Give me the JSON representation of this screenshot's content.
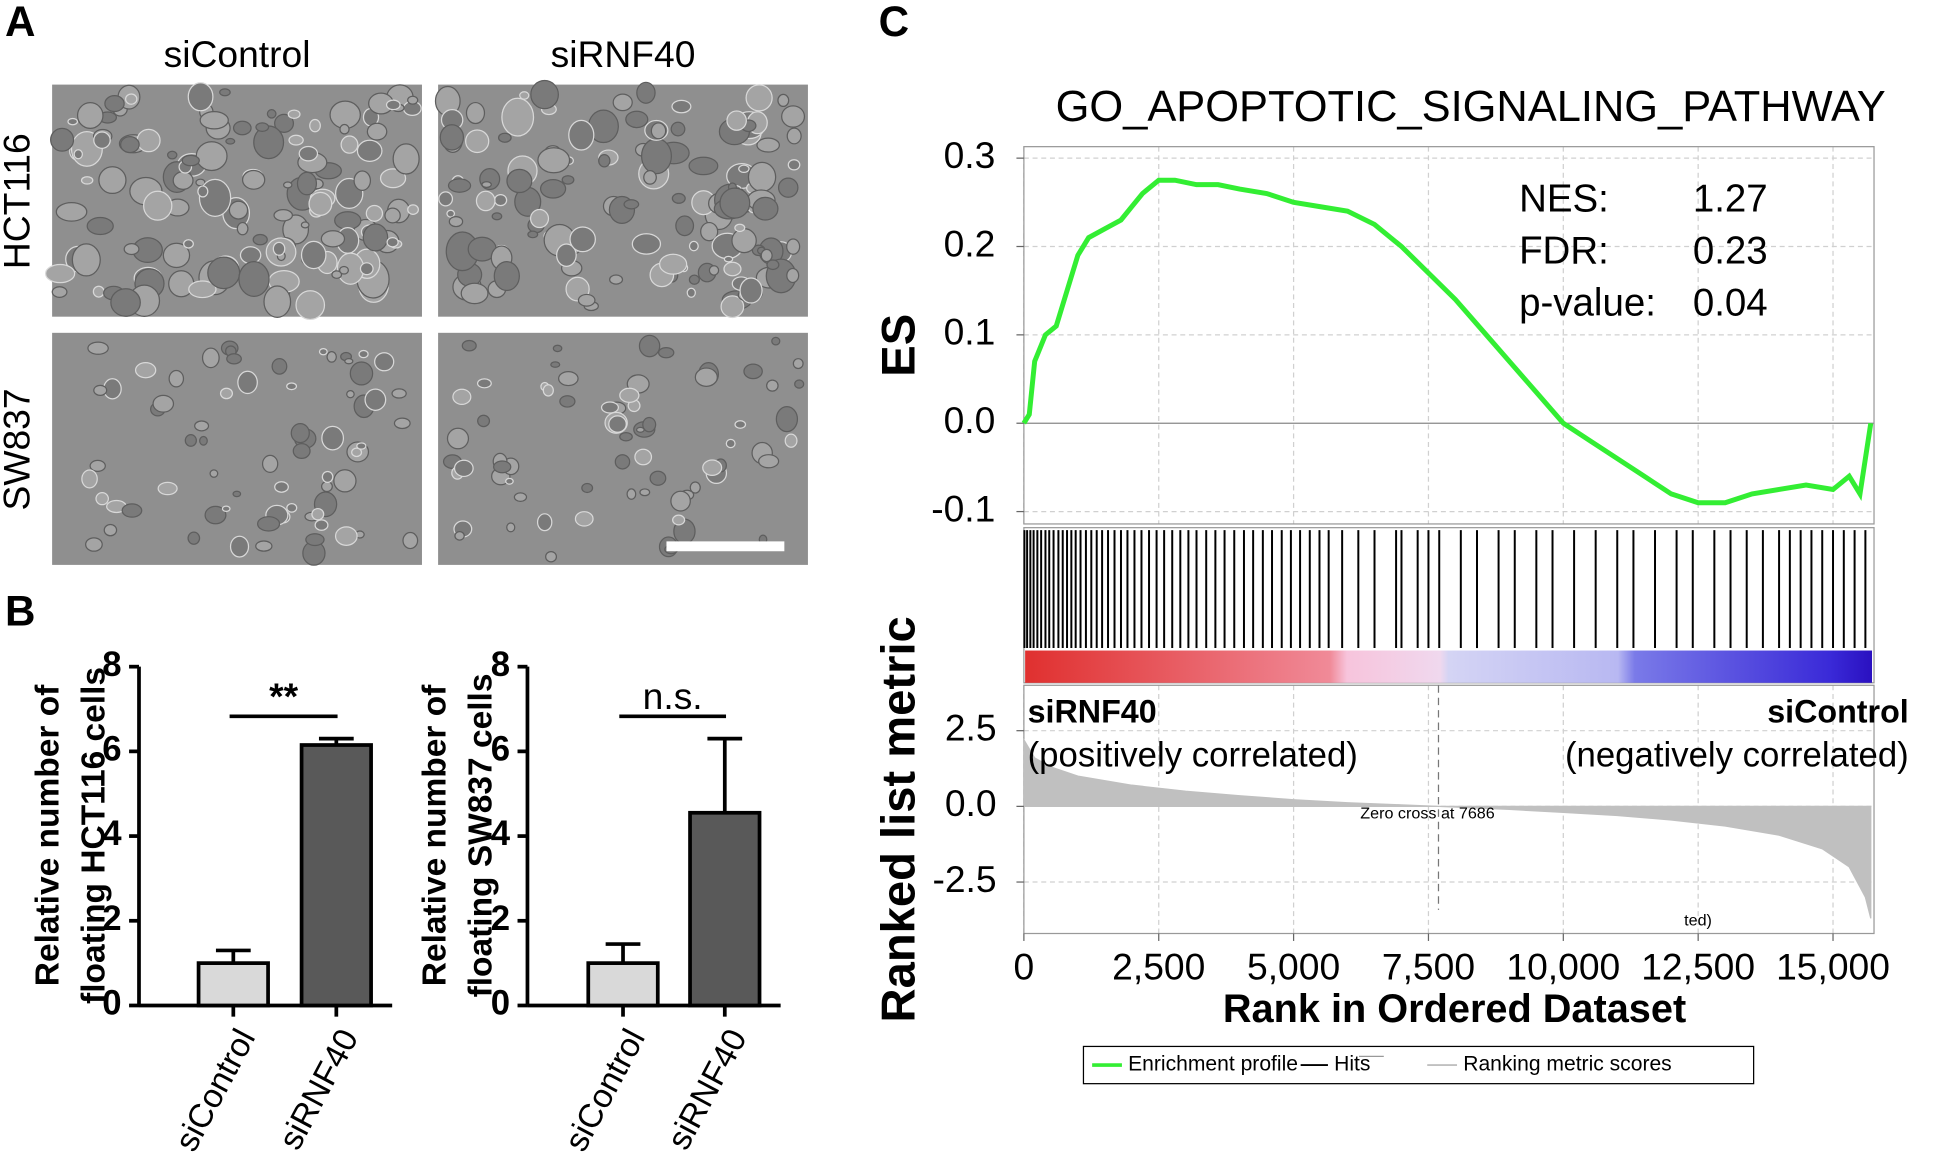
{
  "panel_labels": [
    "A",
    "B",
    "C"
  ],
  "micrographs": {
    "columns": [
      "siControl",
      "siRNF40"
    ],
    "rows": [
      "HCT116",
      "SW837"
    ]
  },
  "chart_data": [
    {
      "type": "bar",
      "ylabel": [
        "Relative number of",
        "floating HCT116 cells"
      ],
      "categories": [
        "siControl",
        "siRNF40"
      ],
      "values": [
        1.0,
        6.15
      ],
      "errors": [
        0.3,
        0.15
      ],
      "colors": [
        "#d9d9d9",
        "#595959"
      ],
      "ylim": [
        0,
        8
      ],
      "yticks": [
        0,
        2,
        4,
        6,
        8
      ],
      "annotation": "**"
    },
    {
      "type": "bar",
      "ylabel": [
        "Relative number of",
        "floating SW837 cells"
      ],
      "categories": [
        "siControl",
        "siRNF40"
      ],
      "values": [
        1.0,
        4.55
      ],
      "errors": [
        0.45,
        1.75
      ],
      "colors": [
        "#d9d9d9",
        "#595959"
      ],
      "ylim": [
        0,
        8
      ],
      "yticks": [
        0,
        2,
        4,
        6,
        8
      ],
      "annotation": "n.s."
    },
    {
      "type": "gsea",
      "title": "GO_APOPTOTIC_SIGNALING_PATHWAY",
      "ylabel": "ES",
      "xlabel": "Rank in Ordered Dataset",
      "color": "#33ee33",
      "x": [
        0,
        100,
        200,
        400,
        600,
        800,
        1000,
        1200,
        1500,
        1800,
        2000,
        2200,
        2500,
        2800,
        3200,
        3600,
        4000,
        4500,
        5000,
        5500,
        6000,
        6500,
        7000,
        7500,
        8000,
        8500,
        9000,
        9500,
        10000,
        10500,
        11000,
        11500,
        12000,
        12500,
        13000,
        13500,
        14000,
        14500,
        15000,
        15300,
        15500,
        15700
      ],
      "values": [
        0,
        0.01,
        0.07,
        0.1,
        0.11,
        0.15,
        0.19,
        0.21,
        0.22,
        0.23,
        0.245,
        0.26,
        0.275,
        0.275,
        0.27,
        0.27,
        0.265,
        0.26,
        0.25,
        0.245,
        0.24,
        0.225,
        0.2,
        0.17,
        0.14,
        0.105,
        0.07,
        0.035,
        0.0,
        -0.02,
        -0.04,
        -0.06,
        -0.08,
        -0.09,
        -0.09,
        -0.08,
        -0.075,
        -0.07,
        -0.075,
        -0.06,
        -0.08,
        0.0
      ],
      "xlim": [
        0,
        15760
      ],
      "xticks": [
        0,
        {
          "value": 2500,
          "label": "2,500"
        },
        {
          "value": 5000,
          "label": "5,000"
        },
        {
          "value": 7500,
          "label": "7,500"
        },
        {
          "value": 10000,
          "label": "10,000"
        },
        {
          "value": 12500,
          "label": "12,500"
        },
        {
          "value": 15000,
          "label": "15,000"
        }
      ],
      "ylim": [
        -0.114,
        0.313
      ],
      "yticks": [
        -0.1,
        {
          "value": 0,
          "label": "0.0"
        },
        0.1,
        0.2,
        0.3
      ],
      "grid": true,
      "stats": [
        {
          "label": "NES:",
          "value": 1.27
        },
        {
          "label": "FDR:",
          "value": 0.23
        },
        {
          "label": "p-value:",
          "value": 0.04
        }
      ],
      "hits": [
        10,
        60,
        120,
        180,
        250,
        320,
        400,
        470,
        550,
        640,
        720,
        800,
        880,
        960,
        1050,
        1150,
        1250,
        1350,
        1450,
        1560,
        1680,
        1800,
        1920,
        2050,
        2180,
        2320,
        2460,
        2600,
        2750,
        2900,
        3050,
        3200,
        3380,
        3550,
        3720,
        3900,
        4080,
        4250,
        4430,
        4600,
        4780,
        4950,
        5120,
        5300,
        5480,
        5650,
        5900,
        6200,
        6500,
        6900,
        7000,
        7300,
        7500,
        7700,
        8100,
        8400,
        8800,
        9100,
        9500,
        9800,
        10200,
        10600,
        11000,
        11300,
        11700,
        12100,
        12400,
        12800,
        13100,
        13400,
        13700,
        14000,
        14200,
        14400,
        14600,
        14800,
        15000,
        15200,
        15400,
        15600
      ],
      "metric": {
        "ylabel": "Ranked list metric",
        "x": [
          0,
          200,
          500,
          1000,
          2000,
          3000,
          4000,
          5000,
          6000,
          7000,
          7686,
          9000,
          10000,
          11000,
          12000,
          13000,
          14000,
          14800,
          15300,
          15600,
          15700
        ],
        "values": [
          2.2,
          1.6,
          1.3,
          1.0,
          0.7,
          0.5,
          0.35,
          0.22,
          0.12,
          0.05,
          0,
          -0.1,
          -0.2,
          -0.3,
          -0.45,
          -0.65,
          -0.95,
          -1.4,
          -2.0,
          -3.0,
          -3.7
        ],
        "color": "#c0c0c0",
        "ylim": [
          -4.2,
          4.0
        ],
        "yticks": [
          {
            "value": -2.5,
            "label": "-2.5"
          },
          {
            "value": 0,
            "label": "0.0"
          },
          2.5
        ],
        "zero_cross": {
          "value": 7686,
          "label": "Zero cross at 7686"
        },
        "positive": {
          "name": "siRNF40",
          "note": "(positively correlated)",
          "color": "#ee1111"
        },
        "negative": {
          "name": "siControl",
          "note": "(negatively correlated)",
          "color": "#1a1aee"
        },
        "truncated_note": "ted)"
      },
      "legend": [
        "Enrichment profile",
        "Hits",
        "Ranking metric scores"
      ]
    }
  ]
}
